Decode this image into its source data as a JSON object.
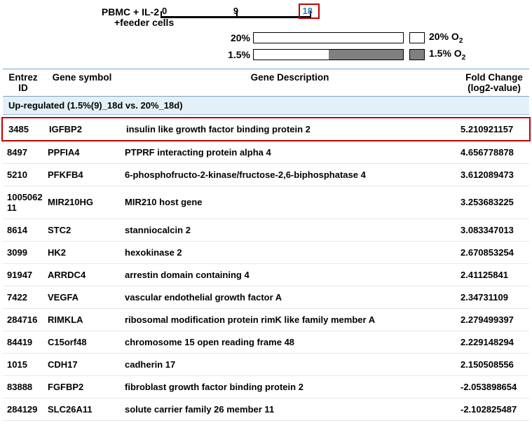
{
  "diagram": {
    "line1": "PBMC + IL-2",
    "line2": "+feeder cells",
    "timepoints": {
      "t0": "0",
      "t9": "9",
      "t18": "18"
    },
    "pct20": "20%",
    "pct15": "1.5%",
    "bar20": {
      "whitePct": 100,
      "grayPct": 0
    },
    "bar15": {
      "whitePct": 50,
      "grayPct": 50
    },
    "legend20": "20%  O",
    "legend15": "1.5%  O",
    "sub2": "2",
    "colors": {
      "highlight_border": "#c00000",
      "timeline_18": "#3a7fb3",
      "section_bg": "#e3f0f8",
      "header_border": "#7aa4c4",
      "bar_gray": "#808080"
    }
  },
  "headers": {
    "entrez": "Entrez ID",
    "symbol": "Gene symbol",
    "desc": "Gene Description",
    "fold": "Fold Change (log2-value)"
  },
  "section": "Up-regulated (1.5%(9)_18d vs. 20%_18d)",
  "rows": [
    {
      "entrez": "3485",
      "symbol": "IGFBP2",
      "desc": "insulin like growth factor binding protein 2",
      "fold": "5.210921157",
      "highlight": true
    },
    {
      "entrez": "8497",
      "symbol": "PPFIA4",
      "desc": "PTPRF interacting protein alpha 4",
      "fold": "4.656778878"
    },
    {
      "entrez": "5210",
      "symbol": "PFKFB4",
      "desc": "6-phosphofructo-2-kinase/fructose-2,6-biphosphatase 4",
      "fold": "3.612089473"
    },
    {
      "entrez": "100506211",
      "symbol": "MIR210HG",
      "desc": "MIR210 host gene",
      "fold": "3.253683225"
    },
    {
      "entrez": "8614",
      "symbol": "STC2",
      "desc": "stanniocalcin 2",
      "fold": "3.083347013"
    },
    {
      "entrez": "3099",
      "symbol": "HK2",
      "desc": "hexokinase 2",
      "fold": "2.670853254"
    },
    {
      "entrez": "91947",
      "symbol": "ARRDC4",
      "desc": "arrestin domain containing 4",
      "fold": "2.41125841"
    },
    {
      "entrez": "7422",
      "symbol": "VEGFA",
      "desc": "vascular endothelial growth factor A",
      "fold": "2.34731109"
    },
    {
      "entrez": "284716",
      "symbol": "RIMKLA",
      "desc": "ribosomal modification protein rimK like family member A",
      "fold": "2.279499397"
    },
    {
      "entrez": "84419",
      "symbol": "C15orf48",
      "desc": "chromosome 15 open reading frame 48",
      "fold": "2.229148294"
    },
    {
      "entrez": "1015",
      "symbol": "CDH17",
      "desc": "cadherin 17",
      "fold": "2.150508556"
    },
    {
      "entrez": "83888",
      "symbol": "FGFBP2",
      "desc": "fibroblast growth factor binding protein 2",
      "fold": "-2.053898654"
    },
    {
      "entrez": "284129",
      "symbol": "SLC26A11",
      "desc": "solute carrier family 26 member 11",
      "fold": "-2.102825487"
    }
  ]
}
